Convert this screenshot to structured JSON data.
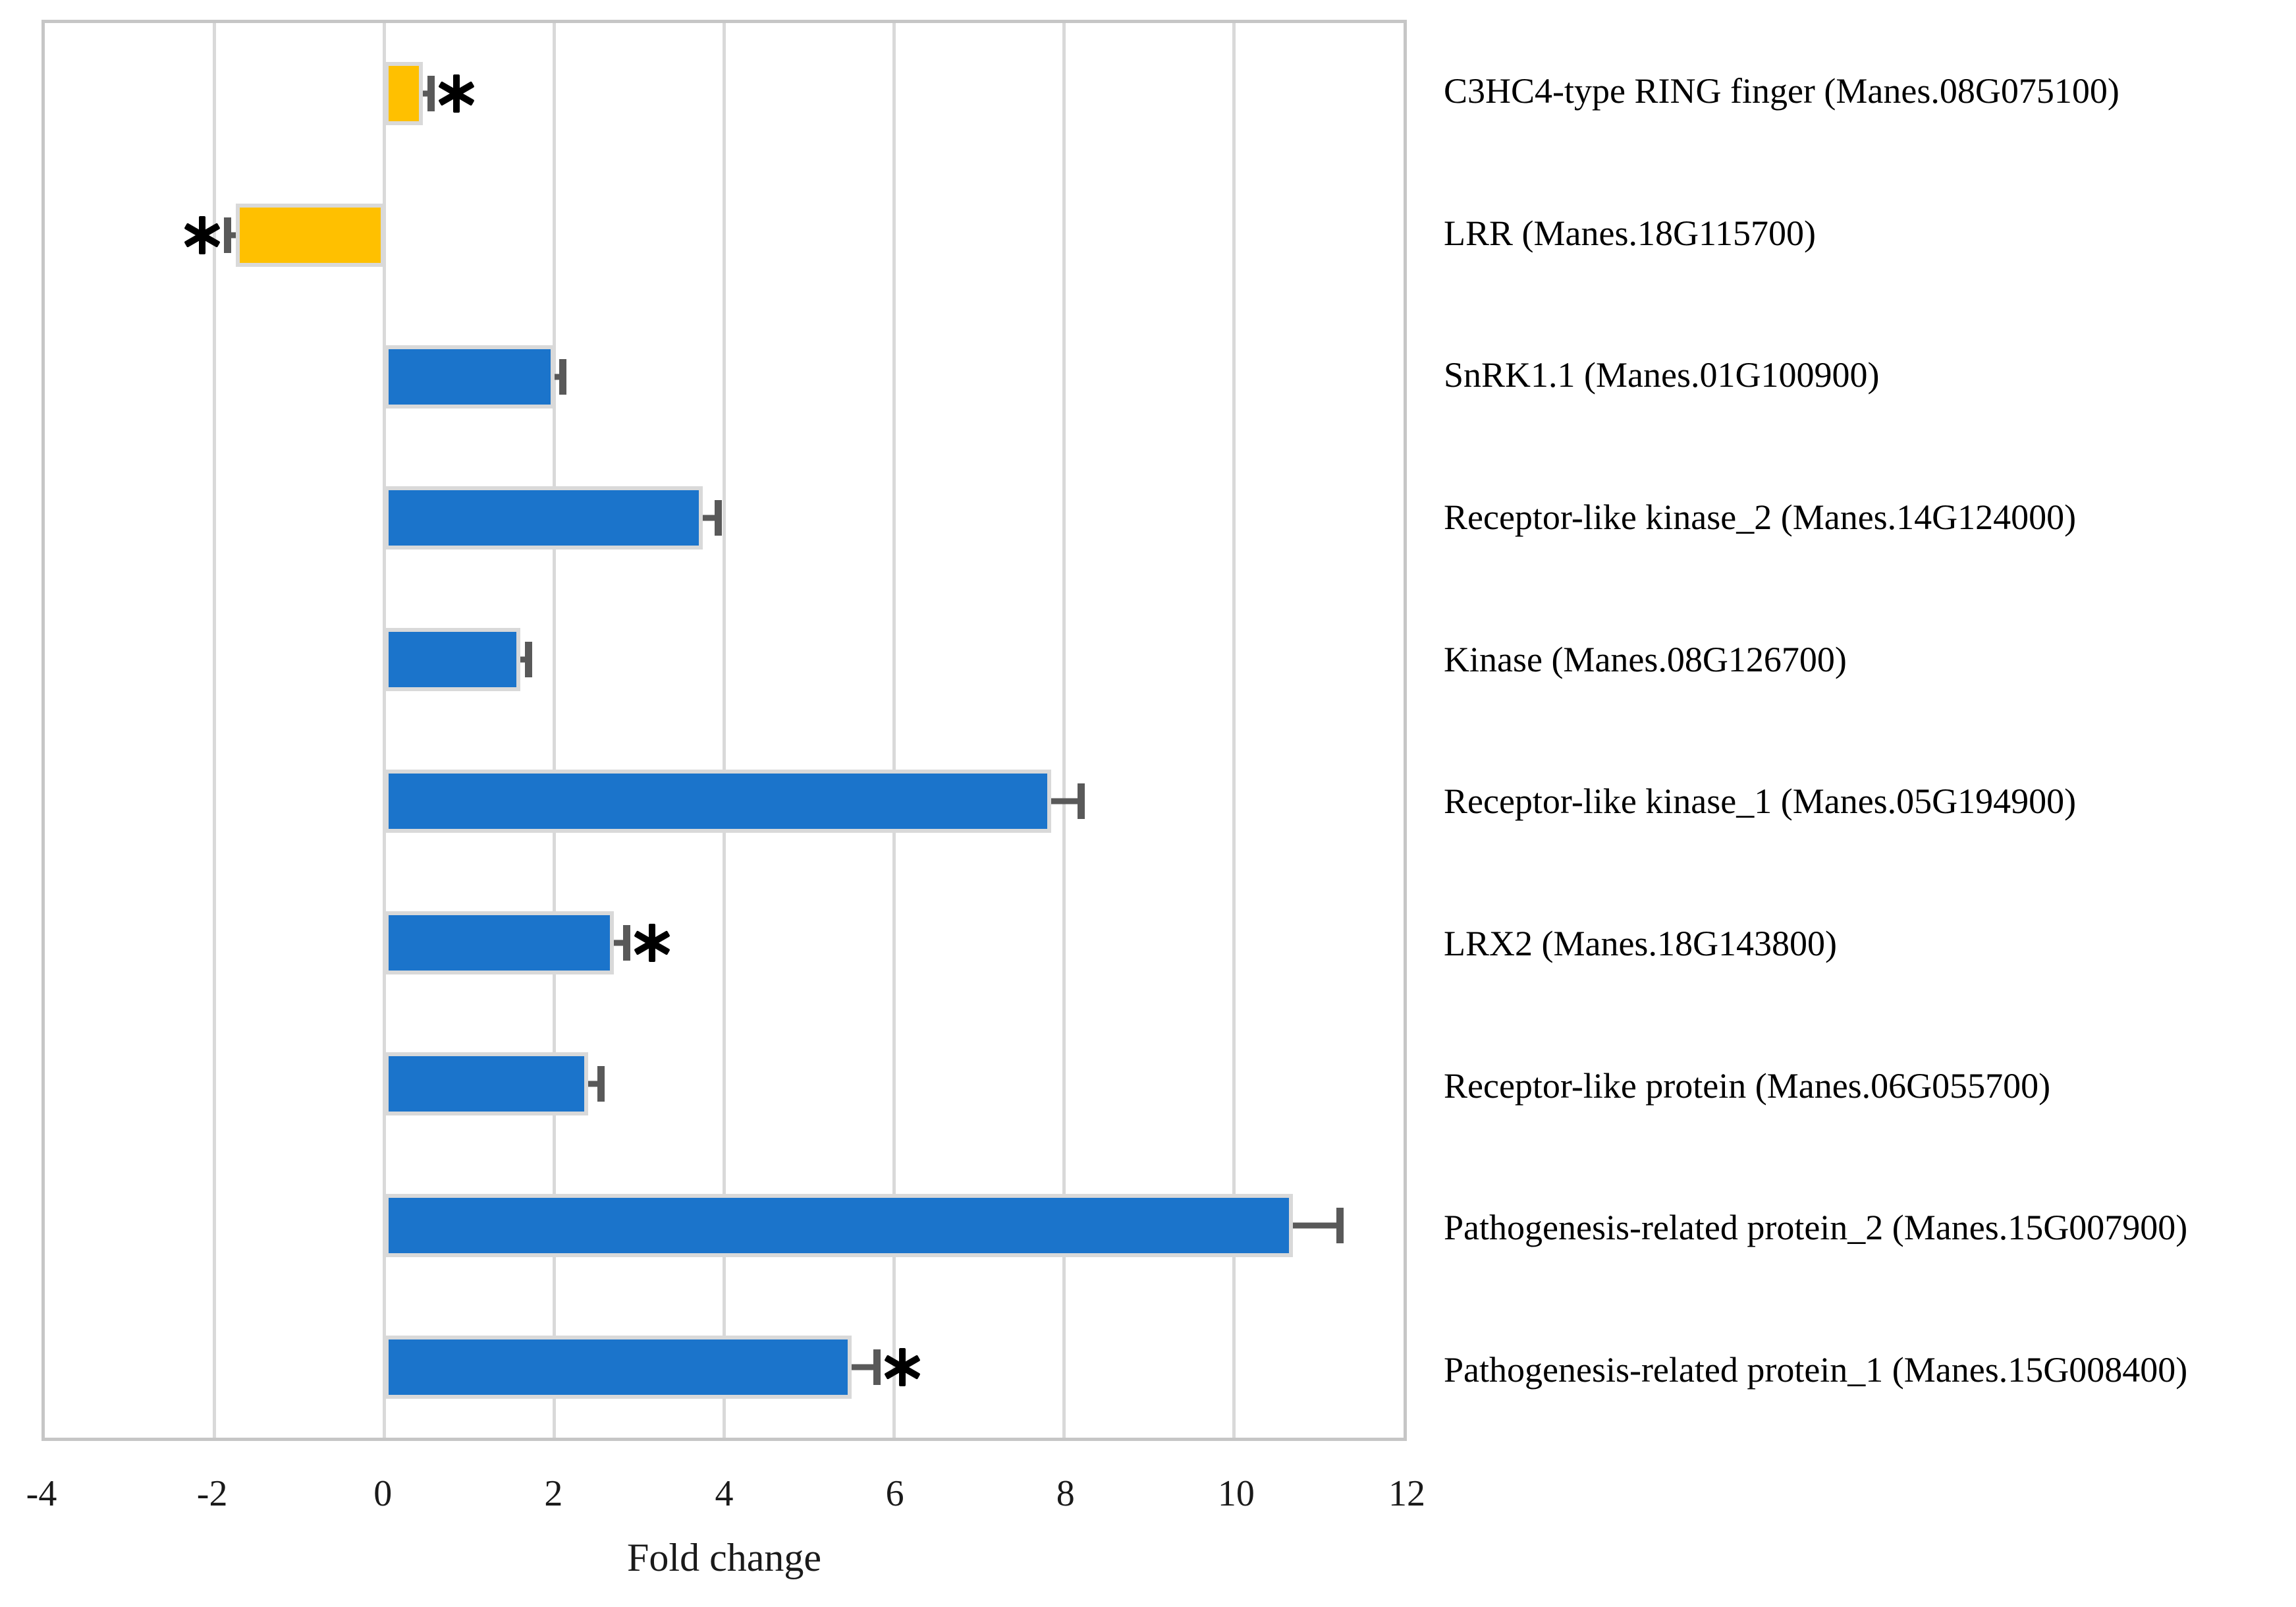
{
  "colors": {
    "bar_blue": "#1b74cb",
    "bar_orange": "#ffc000",
    "bar_border": "#d9d9d9",
    "gridline": "#d9d9d9",
    "plot_border": "#c6c6c6",
    "error_bar": "#595959",
    "asterisk": "#000000",
    "text": "#1a1a1a"
  },
  "chart_data": {
    "type": "bar",
    "orientation": "horizontal",
    "title": "",
    "xlabel": "Fold change",
    "ylabel": "",
    "xlim": [
      -4,
      12
    ],
    "xticks": [
      -4,
      -2,
      0,
      2,
      4,
      6,
      8,
      10,
      12
    ],
    "grid": "vertical-gridlines-on",
    "legend": "none",
    "bars_top_to_bottom": [
      {
        "label": "C3HC4-type RING finger (Manes.08G075100)",
        "value": 0.45,
        "error": 0.1,
        "color": "orange",
        "significant": true,
        "asterisk_side": "right"
      },
      {
        "label": "LRR (Manes.18G115700)",
        "value": -1.75,
        "error": 0.1,
        "color": "orange",
        "significant": true,
        "asterisk_side": "left"
      },
      {
        "label": "SnRK1.1 (Manes.01G100900)",
        "value": 2.0,
        "error": 0.1,
        "color": "blue",
        "significant": false,
        "asterisk_side": null
      },
      {
        "label": "Receptor-like kinase_2 (Manes.14G124000)",
        "value": 3.75,
        "error": 0.18,
        "color": "blue",
        "significant": false,
        "asterisk_side": null
      },
      {
        "label": "Kinase (Manes.08G126700)",
        "value": 1.6,
        "error": 0.1,
        "color": "blue",
        "significant": false,
        "asterisk_side": null
      },
      {
        "label": "Receptor-like kinase_1 (Manes.05G194900)",
        "value": 7.85,
        "error": 0.35,
        "color": "blue",
        "significant": false,
        "asterisk_side": null
      },
      {
        "label": "LRX2 (Manes.18G143800)",
        "value": 2.7,
        "error": 0.15,
        "color": "blue",
        "significant": true,
        "asterisk_side": "right"
      },
      {
        "label": "Receptor-like protein (Manes.06G055700)",
        "value": 2.4,
        "error": 0.15,
        "color": "blue",
        "significant": false,
        "asterisk_side": null
      },
      {
        "label": "Pathogenesis-related protein_2 (Manes.15G007900)",
        "value": 10.7,
        "error": 0.55,
        "color": "blue",
        "significant": false,
        "asterisk_side": null
      },
      {
        "label": "Pathogenesis-related protein_1 (Manes.15G008400)",
        "value": 5.5,
        "error": 0.3,
        "color": "blue",
        "significant": true,
        "asterisk_side": "right"
      }
    ]
  }
}
